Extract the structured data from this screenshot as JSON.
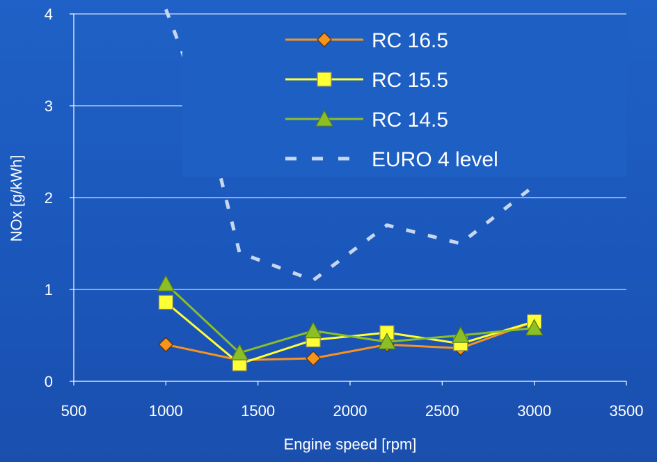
{
  "chart_data": {
    "type": "line",
    "title": "",
    "xlabel": "Engine speed [rpm]",
    "ylabel": "NOx [g/kWh]",
    "xlim": [
      500,
      3500
    ],
    "ylim": [
      0,
      4
    ],
    "xticks": [
      500,
      1000,
      1500,
      2000,
      2500,
      3000,
      3500
    ],
    "yticks": [
      0,
      1,
      2,
      3,
      4
    ],
    "x_tick_labels": [
      "500",
      "1000",
      "1500",
      "2000",
      "2500",
      "3000",
      "3500"
    ],
    "y_tick_labels": [
      "0",
      "1",
      "2",
      "3",
      "4"
    ],
    "grid": "horizontal",
    "legend_position": "top-right",
    "series": [
      {
        "name": "RC 16.5",
        "color": "#f7941d",
        "marker": "diamond",
        "x": [
          1000,
          1400,
          1800,
          2200,
          2600,
          3000
        ],
        "y": [
          0.4,
          0.23,
          0.25,
          0.4,
          0.36,
          0.65
        ]
      },
      {
        "name": "RC 15.5",
        "color": "#ffff33",
        "marker": "square",
        "x": [
          1000,
          1400,
          1800,
          2200,
          2600,
          3000
        ],
        "y": [
          0.86,
          0.19,
          0.45,
          0.53,
          0.41,
          0.65
        ]
      },
      {
        "name": "RC 14.5",
        "color": "#8cbf26",
        "marker": "triangle",
        "x": [
          1000,
          1400,
          1800,
          2200,
          2600,
          3000
        ],
        "y": [
          1.06,
          0.31,
          0.55,
          0.43,
          0.5,
          0.58
        ]
      },
      {
        "name": "EURO 4 level",
        "color": "#c8d7f0",
        "marker": "none",
        "dashed": true,
        "x": [
          1000,
          1200,
          1400,
          1800,
          2200,
          2600,
          3000
        ],
        "y": [
          4.05,
          3.0,
          1.4,
          1.1,
          1.7,
          1.5,
          2.13
        ]
      }
    ]
  }
}
